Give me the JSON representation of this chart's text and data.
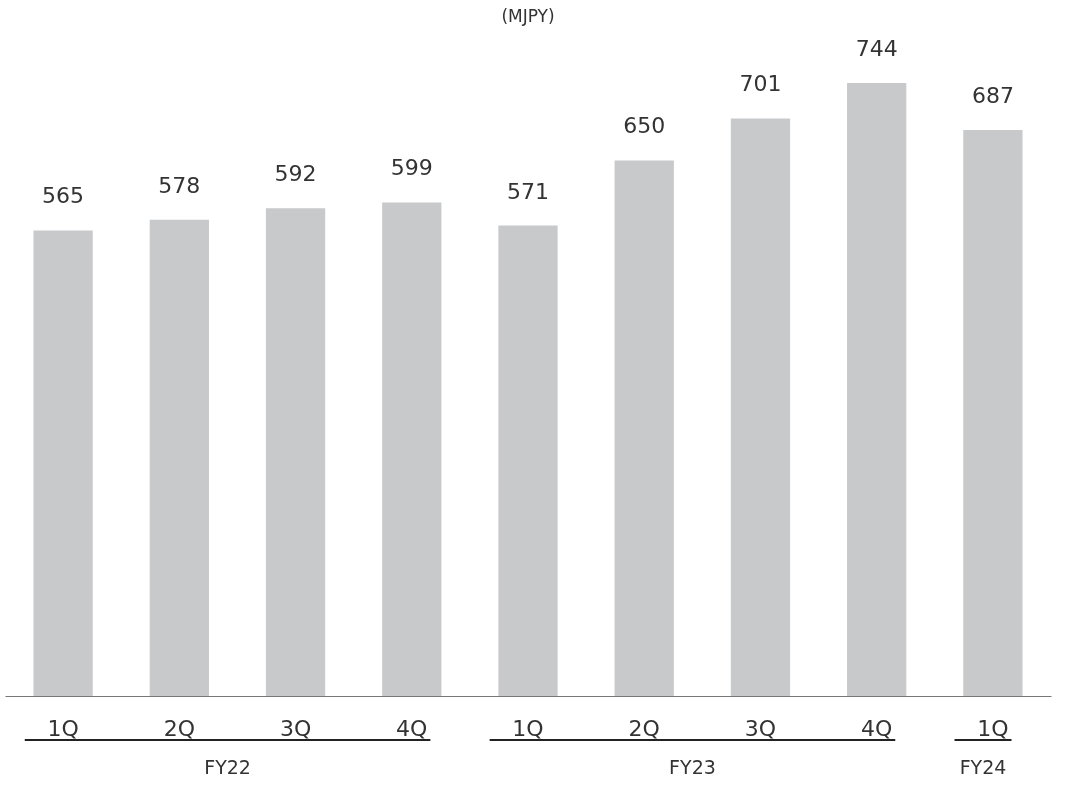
{
  "chart_data": {
    "type": "bar",
    "title": "(MJPY)",
    "categories": [
      "1Q",
      "2Q",
      "3Q",
      "4Q",
      "1Q",
      "2Q",
      "3Q",
      "4Q",
      "1Q"
    ],
    "values": [
      565,
      578,
      592,
      599,
      571,
      650,
      701,
      744,
      687
    ],
    "color": "#c8c9cb",
    "data_labels": true,
    "annotations": [
      "FY22",
      "FY23",
      "FY24"
    ]
  }
}
